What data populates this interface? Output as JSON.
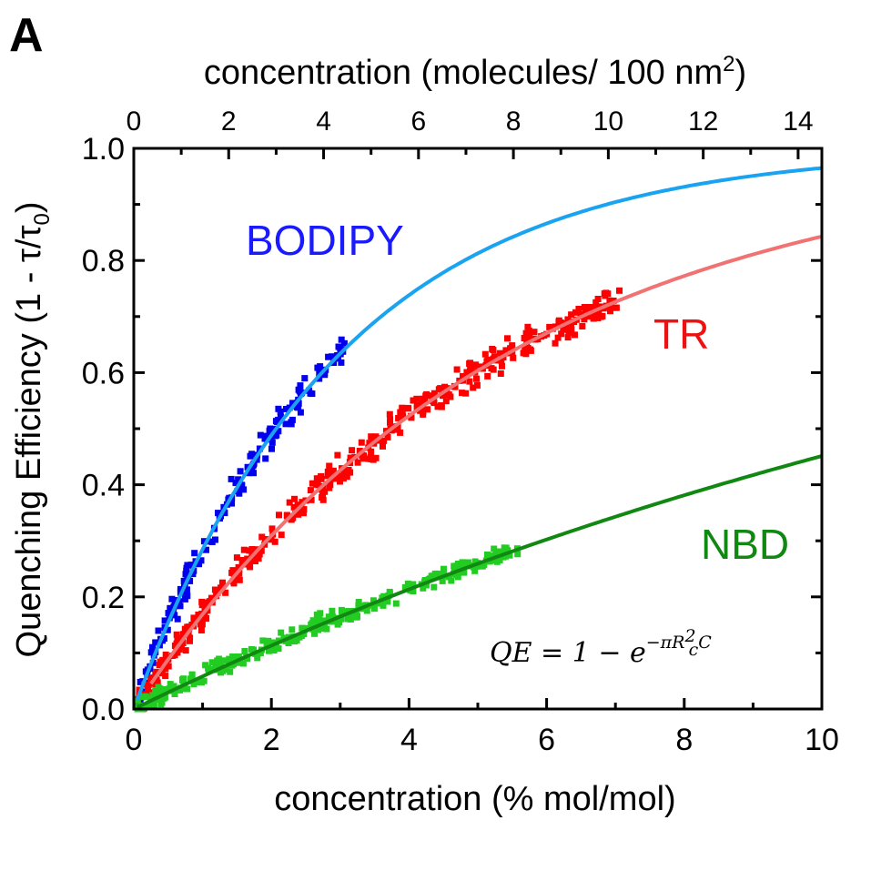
{
  "panel_label": "A",
  "chart_data": {
    "type": "scatter",
    "title": "",
    "xlabel": "concentration (% mol/mol)",
    "xlabel_top_main": "concentration (molecules/ 100 nm",
    "xlabel_top_sup": "2",
    "xlabel_top_close": ")",
    "ylabel": "Quenching Efficiency (1 -  τ/τ",
    "ylabel_sub": "0",
    "ylabel_close": ")",
    "xlim": [
      0,
      10
    ],
    "ylim": [
      0,
      1.0
    ],
    "top_xlim": [
      0,
      14.5
    ],
    "x_ticks": [
      0,
      2,
      4,
      6,
      8,
      10
    ],
    "x_tick_labels": [
      "0",
      "2",
      "4",
      "6",
      "8",
      "10"
    ],
    "y_ticks": [
      0,
      0.2,
      0.4,
      0.6,
      0.8,
      1.0
    ],
    "y_tick_labels": [
      "0.0",
      "0.2",
      "0.4",
      "0.6",
      "0.8",
      "1.0"
    ],
    "top_ticks": [
      0,
      2,
      4,
      6,
      8,
      10,
      12,
      14
    ],
    "top_tick_labels": [
      "0",
      "2",
      "4",
      "6",
      "8",
      "10",
      "12",
      "14"
    ],
    "equation": {
      "main": "QE = 1 − e",
      "exponent": "−πR",
      "exponent_sup": "2",
      "exponent_sub": "c",
      "exponent_tail": "C"
    },
    "series": [
      {
        "name": "BODIPY",
        "label": "BODIPY",
        "label_color": "#1a1aff",
        "point_color": "#0000ee",
        "fit_color": "#1aa3f0",
        "fit_k": 0.335,
        "data_range": [
          0.05,
          3.1
        ],
        "fit_range": [
          0.05,
          10
        ],
        "noise": 0.02,
        "points": 190
      },
      {
        "name": "TR",
        "label": "TR",
        "label_color": "#ee1111",
        "point_color": "#ff0000",
        "fit_color": "#f07272",
        "fit_k": 0.185,
        "data_range": [
          0.05,
          7.1
        ],
        "fit_range": [
          0.25,
          10
        ],
        "noise": 0.018,
        "points": 430
      },
      {
        "name": "NBD",
        "label": "NBD",
        "label_color": "#118811",
        "point_color": "#22cc22",
        "fit_color": "#118811",
        "fit_k": 0.06,
        "data_range": [
          0.05,
          5.6
        ],
        "fit_range": [
          0.05,
          10
        ],
        "noise": 0.012,
        "points": 300
      }
    ]
  }
}
